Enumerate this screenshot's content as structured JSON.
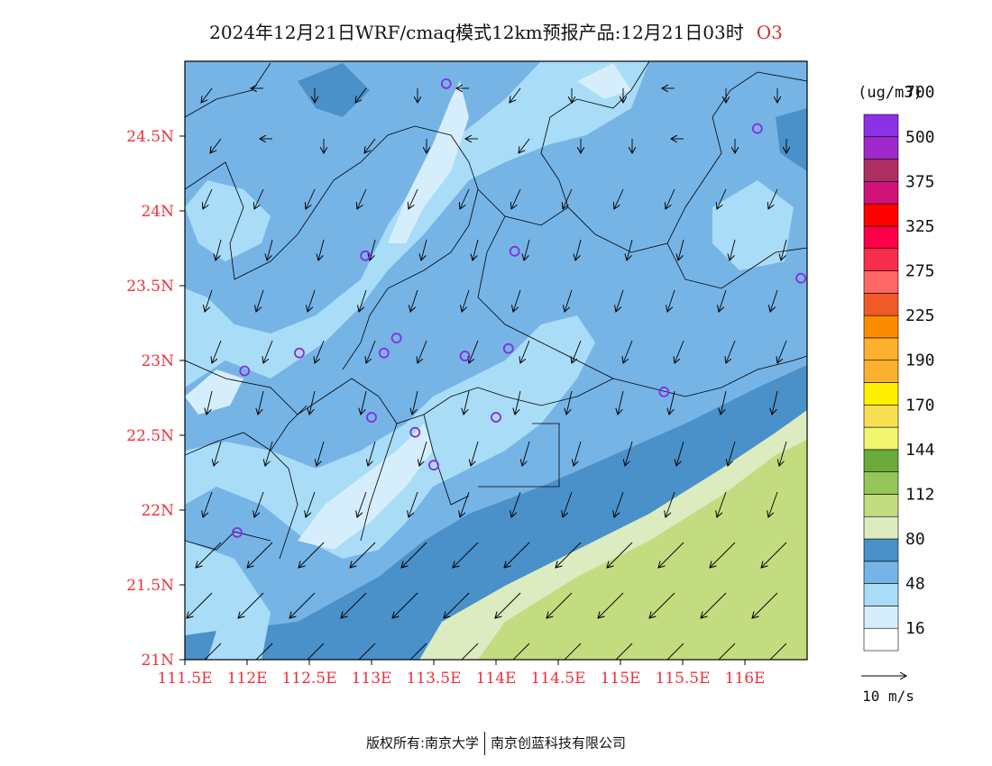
{
  "title": {
    "main": "2024年12月21日WRF/cmaq模式12km预报产品:12月21日03时",
    "species": "O3"
  },
  "map": {
    "lon_range": [
      111.5,
      116.5
    ],
    "lat_range": [
      21.0,
      25.0
    ],
    "y_ticks": [
      "21N",
      "21.5N",
      "22N",
      "22.5N",
      "23N",
      "23.5N",
      "24N",
      "24.5N"
    ],
    "x_ticks": [
      "111.5E",
      "112E",
      "112.5E",
      "113E",
      "113.5E",
      "114E",
      "114.5E",
      "115E",
      "115.5E",
      "116E"
    ],
    "tick_color": "#e8323a",
    "stations": [
      [
        113.6,
        24.85
      ],
      [
        116.1,
        24.55
      ],
      [
        112.95,
        23.7
      ],
      [
        114.15,
        23.73
      ],
      [
        116.45,
        23.55
      ],
      [
        113.2,
        23.15
      ],
      [
        113.1,
        23.05
      ],
      [
        112.42,
        23.05
      ],
      [
        113.75,
        23.03
      ],
      [
        114.1,
        23.08
      ],
      [
        111.98,
        22.93
      ],
      [
        115.35,
        22.79
      ],
      [
        113.0,
        22.62
      ],
      [
        114.0,
        22.62
      ],
      [
        113.35,
        22.52
      ],
      [
        113.5,
        22.3
      ],
      [
        111.92,
        21.85
      ]
    ]
  },
  "colorbar": {
    "unit": "(ug/m3)",
    "colors": [
      "#ffffff",
      "#d6eefb",
      "#a9dcf7",
      "#76b4e6",
      "#4a90c9",
      "#dcebc0",
      "#c3dc7f",
      "#95c659",
      "#6aab3c",
      "#f1f56f",
      "#f6e052",
      "#ffef00",
      "#fbb12e",
      "#fbb12e",
      "#fb8c00",
      "#f05a28",
      "#ff6767",
      "#f92e4c",
      "#fb0048",
      "#ff0000",
      "#cf1279",
      "#ad2f61",
      "#a029cb",
      "#8e31e6"
    ],
    "labels": [
      "16",
      "48",
      "80",
      "112",
      "144",
      "170",
      "190",
      "225",
      "275",
      "325",
      "375",
      "500",
      "700"
    ]
  },
  "vector_legend": {
    "label": "10 m/s"
  },
  "copyright": {
    "left": "版权所有:南京大学",
    "right": "南京创蓝科技有限公司"
  }
}
